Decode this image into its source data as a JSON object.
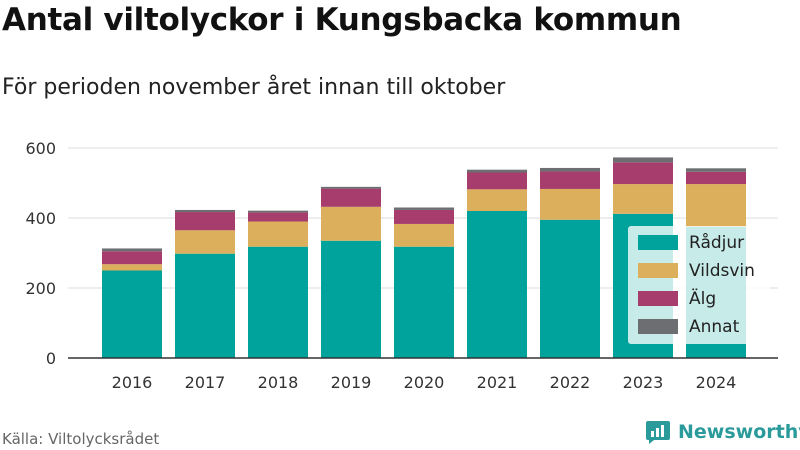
{
  "header": {
    "title": "Antal viltolyckor i Kungsbacka kommun",
    "subtitle": "För perioden november året innan till oktober"
  },
  "footer": {
    "source": "Källa: Viltolycksrådet",
    "brand": "Newsworthy",
    "brand_color": "#2a9a9a"
  },
  "chart_data": {
    "type": "bar",
    "stacked": true,
    "title": "Antal viltolyckor i Kungsbacka kommun",
    "subtitle": "För perioden november året innan till oktober",
    "xlabel": "",
    "ylabel": "",
    "ylim": [
      0,
      640
    ],
    "yticks": [
      0,
      200,
      400,
      600
    ],
    "grid": true,
    "legend_position": "right",
    "categories": [
      "2016",
      "2017",
      "2018",
      "2019",
      "2020",
      "2021",
      "2022",
      "2023",
      "2024"
    ],
    "series": [
      {
        "name": "Rådjur",
        "color": "#00a39b",
        "values": [
          250,
          298,
          318,
          335,
          318,
          420,
          395,
          412,
          375
        ]
      },
      {
        "name": "Vildsvin",
        "color": "#dbaf5b",
        "values": [
          18,
          67,
          72,
          97,
          65,
          62,
          88,
          85,
          122
        ]
      },
      {
        "name": "Älg",
        "color": "#a63d6c",
        "values": [
          37,
          52,
          26,
          52,
          40,
          48,
          50,
          62,
          35
        ]
      },
      {
        "name": "Annat",
        "color": "#6d6e71",
        "values": [
          8,
          6,
          5,
          5,
          7,
          8,
          10,
          14,
          10
        ]
      }
    ]
  }
}
